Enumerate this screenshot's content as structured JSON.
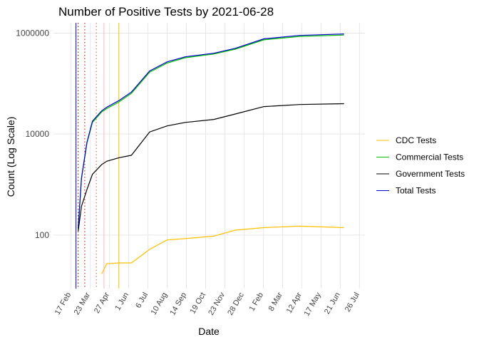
{
  "chart_data": {
    "type": "line",
    "title": "Number of Positive Tests by  2021-06-28",
    "x_label": "Date",
    "y_label": "Count (Log Scale)",
    "log_scale_y": true,
    "grid": true,
    "legend_position": "right",
    "xlim": [
      "2020-01-16",
      "2021-08-05"
    ],
    "xticks": [
      {
        "value": "2020-02-17",
        "label": "17 Feb"
      },
      {
        "value": "2020-03-23",
        "label": "23 Mar"
      },
      {
        "value": "2020-04-27",
        "label": "27 Apr"
      },
      {
        "value": "2020-06-01",
        "label": "1 Jun"
      },
      {
        "value": "2020-07-06",
        "label": "6 Jul"
      },
      {
        "value": "2020-08-10",
        "label": "10 Aug"
      },
      {
        "value": "2020-09-14",
        "label": "14 Sep"
      },
      {
        "value": "2020-10-19",
        "label": "19 Oct"
      },
      {
        "value": "2020-11-23",
        "label": "23 Nov"
      },
      {
        "value": "2020-12-28",
        "label": "28 Dec"
      },
      {
        "value": "2021-02-01",
        "label": "1 Feb"
      },
      {
        "value": "2021-03-08",
        "label": "8 Mar"
      },
      {
        "value": "2021-04-12",
        "label": "12 Apr"
      },
      {
        "value": "2021-05-17",
        "label": "17 May"
      },
      {
        "value": "2021-06-21",
        "label": "21 Jun"
      },
      {
        "value": "2021-07-26",
        "label": "26 Jul"
      }
    ],
    "ylim": [
      8.7,
      1600000
    ],
    "yticks": [
      100,
      10000,
      1000000
    ],
    "x": [
      "2020-03-01",
      "2020-03-07",
      "2020-03-17",
      "2020-03-27",
      "2020-04-13",
      "2020-04-22",
      "2020-05-14",
      "2020-06-06",
      "2020-07-09",
      "2020-08-10",
      "2020-09-12",
      "2020-11-03",
      "2020-12-12",
      "2021-02-02",
      "2021-04-08",
      "2021-06-28"
    ],
    "series": [
      {
        "name": "CDC Tests",
        "color": "#ffc000",
        "values": [
          null,
          null,
          null,
          null,
          17,
          27,
          28,
          28,
          52,
          80,
          85,
          95,
          125,
          140,
          150,
          140
        ]
      },
      {
        "name": "Commercial Tests",
        "color": "#00c000",
        "values": [
          130,
          1300,
          6600,
          17000,
          27500,
          32000,
          43000,
          64000,
          168000,
          255000,
          325000,
          385000,
          480000,
          735000,
          860000,
          915000
        ]
      },
      {
        "name": "Government Tests",
        "color": "#000000",
        "values": [
          120,
          370,
          800,
          1600,
          2500,
          2900,
          3400,
          3800,
          11000,
          14500,
          17000,
          19500,
          25000,
          35000,
          38500,
          40000
        ]
      },
      {
        "name": "Total Tests",
        "color": "#0000cc",
        "values": [
          138,
          1350,
          6900,
          18000,
          29000,
          34000,
          46000,
          68000,
          178000,
          270000,
          340000,
          400000,
          500000,
          770000,
          900000,
          960000
        ]
      }
    ],
    "vlines": [
      {
        "x": "2020-02-26",
        "color": "#0000cc",
        "dashed": false
      },
      {
        "x": "2020-03-01",
        "color": "#880000",
        "dashed": true
      },
      {
        "x": "2020-03-13",
        "color": "#cc0000",
        "dashed": true
      },
      {
        "x": "2020-04-03",
        "color": "#e05050",
        "dashed": true
      },
      {
        "x": "2020-04-17",
        "color": "#ffb6c1",
        "dashed": false
      },
      {
        "x": "2020-05-14",
        "color": "#ffc000",
        "dashed": false
      }
    ]
  }
}
